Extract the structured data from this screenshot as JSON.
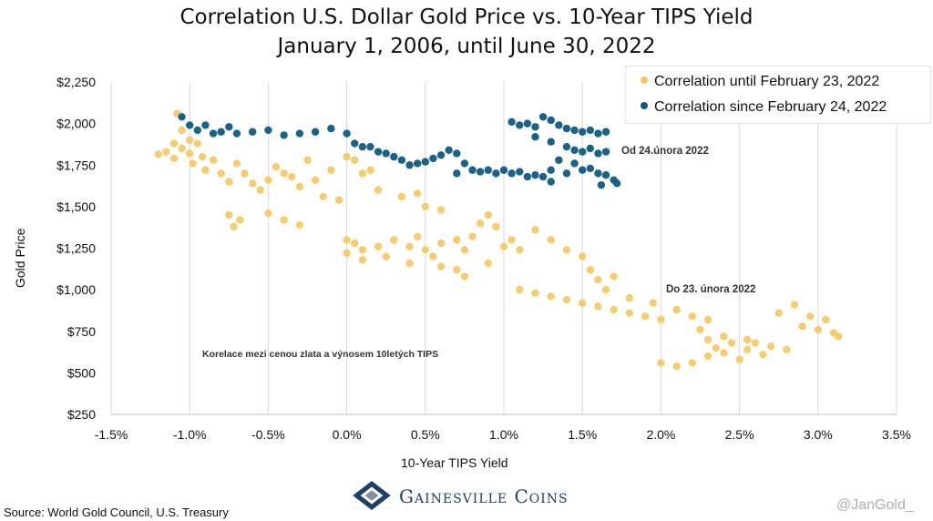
{
  "chart_data": {
    "type": "scatter",
    "title": "Correlation U.S. Dollar Gold Price vs. 10-Year TIPS Yield",
    "subtitle": "January 1, 2006, until June 30, 2022",
    "xlabel": "10-Year TIPS Yield",
    "ylabel": "Gold Price",
    "xlim": [
      -1.5,
      3.5
    ],
    "ylim": [
      250,
      2250
    ],
    "x_ticks": [
      "-1.5%",
      "-1.0%",
      "-0.5%",
      "0.0%",
      "0.5%",
      "1.0%",
      "1.5%",
      "2.0%",
      "2.5%",
      "3.0%",
      "3.5%"
    ],
    "y_ticks": [
      "$250",
      "$500",
      "$750",
      "$1,000",
      "$1,250",
      "$1,500",
      "$1,750",
      "$2,000",
      "$2,250"
    ],
    "grid": "vertical",
    "legend_position": "top-right",
    "series": [
      {
        "name": "Correlation until February 23, 2022",
        "color": "#F5C969",
        "points": [
          [
            -1.2,
            1815
          ],
          [
            -1.15,
            1830
          ],
          [
            -1.1,
            1880
          ],
          [
            -1.1,
            1790
          ],
          [
            -1.08,
            2060
          ],
          [
            -1.05,
            1960
          ],
          [
            -1.05,
            1850
          ],
          [
            -1.0,
            1900
          ],
          [
            -1.0,
            1820
          ],
          [
            -0.98,
            1760
          ],
          [
            -0.95,
            1880
          ],
          [
            -0.92,
            1800
          ],
          [
            -0.9,
            1720
          ],
          [
            -0.85,
            1780
          ],
          [
            -0.8,
            1700
          ],
          [
            -0.75,
            1650
          ],
          [
            -0.7,
            1760
          ],
          [
            -0.65,
            1700
          ],
          [
            -0.6,
            1640
          ],
          [
            -0.55,
            1600
          ],
          [
            -0.5,
            1660
          ],
          [
            -0.45,
            1740
          ],
          [
            -0.4,
            1700
          ],
          [
            -0.35,
            1680
          ],
          [
            -0.3,
            1620
          ],
          [
            -0.2,
            1660
          ],
          [
            -0.1,
            1720
          ],
          [
            0.0,
            1800
          ],
          [
            0.05,
            1780
          ],
          [
            0.1,
            1700
          ],
          [
            0.15,
            1720
          ],
          [
            -0.25,
            1780
          ],
          [
            -0.15,
            1560
          ],
          [
            -0.05,
            1540
          ],
          [
            -0.75,
            1450
          ],
          [
            -0.72,
            1380
          ],
          [
            -0.68,
            1420
          ],
          [
            -0.5,
            1460
          ],
          [
            -0.4,
            1420
          ],
          [
            -0.3,
            1390
          ],
          [
            0.0,
            1300
          ],
          [
            0.05,
            1280
          ],
          [
            0.1,
            1240
          ],
          [
            0.2,
            1260
          ],
          [
            0.3,
            1300
          ],
          [
            0.4,
            1260
          ],
          [
            0.45,
            1320
          ],
          [
            0.5,
            1240
          ],
          [
            0.55,
            1200
          ],
          [
            0.6,
            1280
          ],
          [
            0.7,
            1300
          ],
          [
            0.75,
            1240
          ],
          [
            0.8,
            1320
          ],
          [
            0.85,
            1400
          ],
          [
            0.9,
            1450
          ],
          [
            0.95,
            1380
          ],
          [
            1.0,
            1260
          ],
          [
            1.05,
            1300
          ],
          [
            1.1,
            1240
          ],
          [
            1.2,
            1360
          ],
          [
            1.3,
            1300
          ],
          [
            1.4,
            1240
          ],
          [
            1.5,
            1200
          ],
          [
            1.55,
            1120
          ],
          [
            1.6,
            1060
          ],
          [
            1.7,
            1080
          ],
          [
            0.2,
            1600
          ],
          [
            0.35,
            1560
          ],
          [
            0.45,
            1580
          ],
          [
            0.5,
            1500
          ],
          [
            0.6,
            1480
          ],
          [
            0.0,
            1220
          ],
          [
            0.1,
            1180
          ],
          [
            0.25,
            1200
          ],
          [
            0.4,
            1160
          ],
          [
            0.6,
            1140
          ],
          [
            0.7,
            1120
          ],
          [
            0.75,
            1080
          ],
          [
            0.9,
            1160
          ],
          [
            1.1,
            1000
          ],
          [
            1.2,
            980
          ],
          [
            1.3,
            960
          ],
          [
            1.4,
            940
          ],
          [
            1.5,
            920
          ],
          [
            1.6,
            900
          ],
          [
            1.7,
            880
          ],
          [
            1.8,
            860
          ],
          [
            1.9,
            840
          ],
          [
            2.0,
            820
          ],
          [
            1.65,
            1000
          ],
          [
            1.8,
            950
          ],
          [
            1.95,
            920
          ],
          [
            2.1,
            880
          ],
          [
            2.2,
            840
          ],
          [
            2.3,
            820
          ],
          [
            2.0,
            560
          ],
          [
            2.1,
            540
          ],
          [
            2.2,
            560
          ],
          [
            2.3,
            600
          ],
          [
            2.35,
            650
          ],
          [
            2.4,
            620
          ],
          [
            2.5,
            580
          ],
          [
            2.55,
            640
          ],
          [
            2.6,
            680
          ],
          [
            2.65,
            610
          ],
          [
            2.7,
            660
          ],
          [
            2.8,
            640
          ],
          [
            2.3,
            700
          ],
          [
            2.4,
            720
          ],
          [
            2.45,
            680
          ],
          [
            2.75,
            860
          ],
          [
            2.9,
            780
          ],
          [
            2.95,
            840
          ],
          [
            3.0,
            760
          ],
          [
            3.05,
            820
          ],
          [
            3.1,
            740
          ],
          [
            3.13,
            720
          ],
          [
            2.85,
            910
          ],
          [
            2.25,
            760
          ],
          [
            2.55,
            700
          ]
        ]
      },
      {
        "name": "Correlation since February 24, 2022",
        "color": "#0F5A82",
        "points": [
          [
            -1.05,
            2040
          ],
          [
            -1.0,
            1990
          ],
          [
            -0.95,
            1960
          ],
          [
            -0.9,
            1990
          ],
          [
            -0.85,
            1940
          ],
          [
            -0.8,
            1950
          ],
          [
            -0.75,
            1980
          ],
          [
            -0.7,
            1940
          ],
          [
            -0.6,
            1950
          ],
          [
            -0.5,
            1960
          ],
          [
            -0.4,
            1930
          ],
          [
            -0.3,
            1940
          ],
          [
            -0.2,
            1950
          ],
          [
            -0.1,
            1970
          ],
          [
            0.0,
            1940
          ],
          [
            0.05,
            1880
          ],
          [
            0.1,
            1860
          ],
          [
            0.15,
            1860
          ],
          [
            0.2,
            1830
          ],
          [
            0.25,
            1820
          ],
          [
            0.3,
            1800
          ],
          [
            0.35,
            1780
          ],
          [
            0.4,
            1750
          ],
          [
            0.45,
            1760
          ],
          [
            0.5,
            1770
          ],
          [
            0.55,
            1790
          ],
          [
            0.6,
            1810
          ],
          [
            0.65,
            1840
          ],
          [
            0.7,
            1820
          ],
          [
            0.75,
            1760
          ],
          [
            0.8,
            1720
          ],
          [
            0.85,
            1710
          ],
          [
            0.9,
            1720
          ],
          [
            0.95,
            1700
          ],
          [
            1.0,
            1720
          ],
          [
            1.05,
            1700
          ],
          [
            1.1,
            1710
          ],
          [
            1.15,
            1680
          ],
          [
            1.2,
            1690
          ],
          [
            1.25,
            1680
          ],
          [
            1.3,
            1650
          ],
          [
            0.7,
            1700
          ],
          [
            1.05,
            2010
          ],
          [
            1.1,
            1990
          ],
          [
            1.15,
            2000
          ],
          [
            1.2,
            1980
          ],
          [
            1.25,
            2040
          ],
          [
            1.3,
            2020
          ],
          [
            1.35,
            1990
          ],
          [
            1.4,
            1970
          ],
          [
            1.45,
            1960
          ],
          [
            1.5,
            1950
          ],
          [
            1.55,
            1960
          ],
          [
            1.6,
            1940
          ],
          [
            1.65,
            1950
          ],
          [
            1.2,
            1920
          ],
          [
            1.3,
            1890
          ],
          [
            1.4,
            1860
          ],
          [
            1.45,
            1840
          ],
          [
            1.5,
            1830
          ],
          [
            1.55,
            1850
          ],
          [
            1.6,
            1820
          ],
          [
            1.65,
            1830
          ],
          [
            1.35,
            1780
          ],
          [
            1.45,
            1760
          ],
          [
            1.5,
            1720
          ],
          [
            1.55,
            1730
          ],
          [
            1.6,
            1700
          ],
          [
            1.65,
            1690
          ],
          [
            1.7,
            1660
          ],
          [
            1.72,
            1640
          ],
          [
            1.62,
            1630
          ],
          [
            1.4,
            1700
          ],
          [
            1.3,
            1720
          ]
        ]
      }
    ],
    "annotations": [
      "Od 24.února 2022",
      "Do 23. února 2022",
      "Korelace mezi cenou zlata a výnosem 10letých TIPS"
    ]
  },
  "footer": {
    "source": "Source: World Gold Council, U.S. Treasury",
    "brand_name": "Gainesville Coins",
    "watermark": "@JanGold_"
  }
}
